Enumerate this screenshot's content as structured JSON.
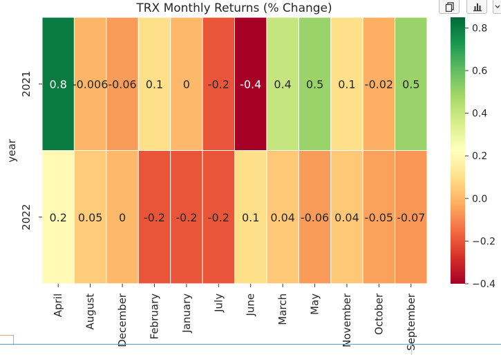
{
  "toolbar": {
    "buttons": [
      {
        "name": "copy-button",
        "icon": "copy-icon"
      },
      {
        "name": "bar-chart-button",
        "icon": "bar-chart-icon"
      },
      {
        "name": "more-button",
        "icon": "chevron-down-icon"
      }
    ]
  },
  "chart_data": {
    "type": "heatmap",
    "title": "TRX Monthly Returns (% Change)",
    "xlabel": "",
    "ylabel": "year",
    "x": [
      "April",
      "August",
      "December",
      "February",
      "January",
      "July",
      "June",
      "March",
      "May",
      "November",
      "October",
      "September"
    ],
    "y": [
      "2021",
      "2022"
    ],
    "values": [
      [
        0.8,
        -0.006,
        -0.06,
        0.1,
        0,
        -0.2,
        -0.4,
        0.4,
        0.5,
        0.1,
        -0.02,
        0.5
      ],
      [
        0.2,
        0.05,
        0,
        -0.2,
        -0.2,
        -0.2,
        0.1,
        0.04,
        -0.06,
        0.04,
        -0.05,
        -0.07
      ]
    ],
    "labels": [
      [
        "0.8",
        "-0.006",
        "-0.06",
        "0.1",
        "0",
        "-0.2",
        "-0.4",
        "0.4",
        "0.5",
        "0.1",
        "-0.02",
        "0.5"
      ],
      [
        "0.2",
        "0.05",
        "0",
        "-0.2",
        "-0.2",
        "-0.2",
        "0.1",
        "0.04",
        "-0.06",
        "0.04",
        "-0.05",
        "-0.07"
      ]
    ],
    "colormap": "RdYlGn",
    "colorbar": {
      "vmin": -0.4,
      "vmax": 0.85,
      "ticks": [
        0.8,
        0.6,
        0.4,
        0.2,
        0.0,
        -0.2,
        -0.4
      ],
      "tick_labels": [
        "0.8",
        "0.6",
        "0.4",
        "0.2",
        "0.0",
        "−0.2",
        "−0.4"
      ]
    }
  }
}
